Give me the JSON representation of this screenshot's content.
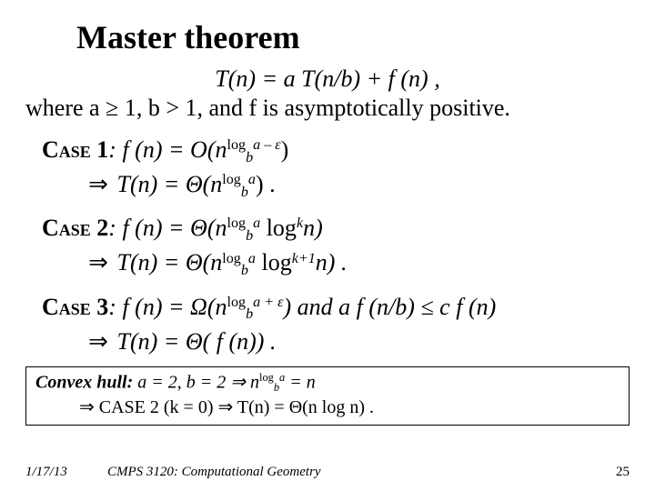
{
  "title": "Master theorem",
  "formula": "T(n) = a T(n/b) + f (n)  ,",
  "where": "where a ≥ 1, b > 1, and  f  is asymptotically positive.",
  "cases": {
    "c1": {
      "label": "Case 1",
      "line1a": ": f (n) = O(n",
      "exp1": "log",
      "sub1": "b",
      "exp1b": "a – ε",
      "line1b": ")",
      "line2a": " T(n) = Θ(n",
      "exp2": "log",
      "sub2": "b",
      "exp2b": "a",
      "line2b": ") ."
    },
    "c2": {
      "label": "Case 2",
      "line1a": ": f (n) = Θ(n",
      "exp1": "log",
      "sub1": "b",
      "exp1b": "a",
      "line1b": " log",
      "exp1c": "k",
      "line1c": "n)",
      "line2a": " T(n) = Θ(n",
      "exp2": "log",
      "sub2": "b",
      "exp2b": "a",
      "line2b": " log",
      "exp2c": "k+1",
      "line2c": "n) ."
    },
    "c3": {
      "label": "Case 3",
      "line1a": ": f (n) = Ω(n",
      "exp1": "log",
      "sub1": "b",
      "exp1b": "a + ε",
      "line1b": ") and a f (n/b) ≤ c f (n)",
      "line2a": " T(n) = Θ( f (n)) ."
    }
  },
  "convex": {
    "title": "Convex hull:",
    "l1a": " a = 2, b = 2  ⇒  n",
    "e1": "log",
    "s1": "b",
    "e1b": "a",
    "l1b": " = n",
    "l2": "⇒  CASE 2 (k = 0)  ⇒  T(n) = Θ(n log n) ."
  },
  "footer": {
    "date": "1/17/13",
    "course": "CMPS 3120: Computational Geometry",
    "page": "25"
  }
}
